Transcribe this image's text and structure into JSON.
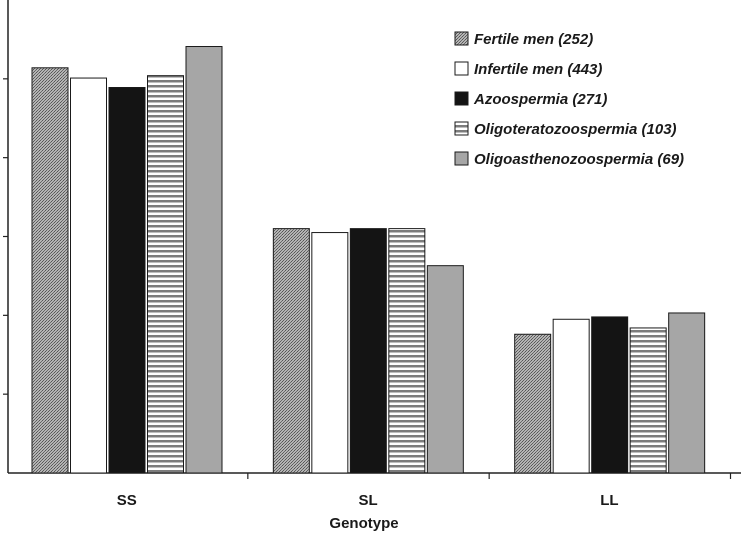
{
  "chart_data": {
    "type": "bar",
    "title": "",
    "xlabel": "Genotype",
    "ylabel": "",
    "categories": [
      "SS",
      "SL",
      "LL"
    ],
    "ylim": [
      0,
      60
    ],
    "grid": false,
    "legend_position": "top-right",
    "series": [
      {
        "name": "Fertile men (252)",
        "values": [
          51.4,
          31.0,
          17.6
        ],
        "pattern": "dots",
        "color": "#9a9a9a"
      },
      {
        "name": "Infertile men (443)",
        "values": [
          50.1,
          30.5,
          19.5
        ],
        "pattern": "none",
        "color": "#ffffff"
      },
      {
        "name": "Azoospermia (271)",
        "values": [
          48.9,
          31.0,
          19.8
        ],
        "pattern": "solid",
        "color": "#141414"
      },
      {
        "name": "Oligoteratozoospermia (103)",
        "values": [
          50.4,
          31.0,
          18.4
        ],
        "pattern": "hstripes",
        "color": "#8a8a8a"
      },
      {
        "name": "Oligoasthenozoospermia (69)",
        "values": [
          54.1,
          26.3,
          20.3
        ],
        "pattern": "solid",
        "color": "#a6a6a6"
      }
    ]
  }
}
